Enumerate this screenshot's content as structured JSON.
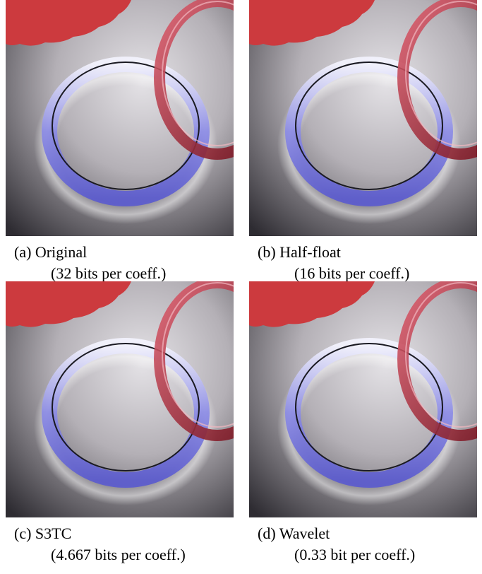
{
  "figure": {
    "panels": [
      {
        "label": "(a) Original",
        "detail": "(32 bits per coeff.)"
      },
      {
        "label": "(b) Half-float",
        "detail": "(16 bits per coeff.)"
      },
      {
        "label": "(c) S3TC",
        "detail": "(4.667 bits per coeff.)"
      },
      {
        "label": "(d) Wavelet",
        "detail": "(0.33 bit per coeff.)"
      }
    ]
  }
}
